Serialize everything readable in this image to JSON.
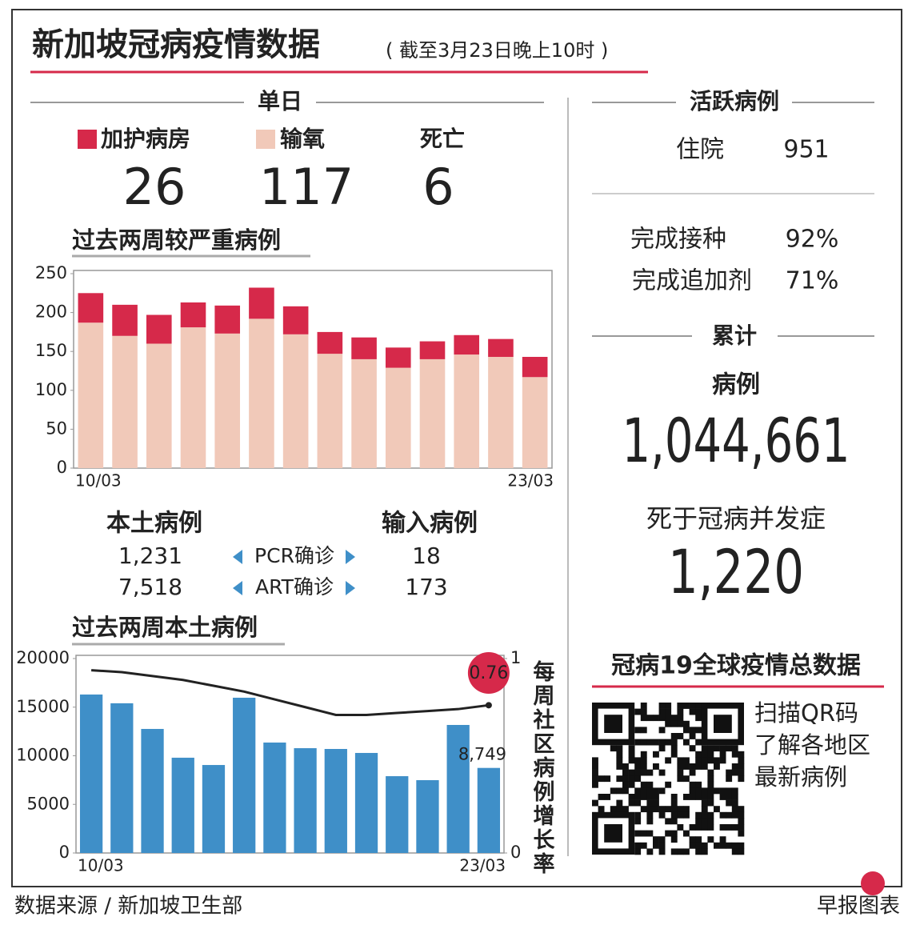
{
  "header": {
    "title": "新加坡冠病疫情数据",
    "subtitle": "( 截至3月23日晚上10时 )"
  },
  "daily": {
    "title": "单日",
    "values": [
      26,
      117,
      6
    ],
    "death_label": "死亡"
  },
  "active": {
    "title": "活跃病例",
    "rows": [
      [
        "住院",
        "951"
      ],
      [
        "完成接种",
        "92%"
      ],
      [
        "完成追加剂",
        "71%"
      ]
    ]
  },
  "cumulative": {
    "title": "累计",
    "cases_label": "病例",
    "cases": "1,044,661",
    "deaths_label": "死于冠病并发症",
    "deaths": "1,220"
  },
  "local_imported": {
    "headers": [
      "本土病例",
      "输入病例"
    ],
    "rows": [
      [
        "1,231",
        "PCR确诊",
        "18"
      ],
      [
        "7,518",
        "ART确诊",
        "173"
      ]
    ]
  },
  "qr": {
    "title": "冠病19全球疫情总数据",
    "lines": [
      "扫描QR码",
      "了解各地区",
      "最新病例"
    ]
  },
  "footer": {
    "source": "数据来源 / 新加坡卫生部",
    "credit": "早报图表"
  },
  "chart_data": [
    {
      "type": "bar",
      "stacked": true,
      "title": "过去两周较严重病例",
      "categories": [
        "10/03",
        null,
        null,
        null,
        null,
        null,
        null,
        null,
        null,
        null,
        null,
        null,
        null,
        "23/03"
      ],
      "series": [
        {
          "name": "输氧",
          "color": "#f1c9b9",
          "values": [
            187,
            170,
            160,
            181,
            173,
            192,
            172,
            147,
            140,
            129,
            140,
            146,
            143,
            117
          ]
        },
        {
          "name": "加护病房",
          "color": "#d6294a",
          "values": [
            38,
            40,
            37,
            32,
            36,
            40,
            36,
            28,
            28,
            26,
            23,
            25,
            23,
            26
          ]
        }
      ],
      "ylim": [
        0,
        250
      ],
      "yticks": [
        0,
        50,
        100,
        150,
        200,
        250
      ],
      "grid": false
    },
    {
      "type": "bar",
      "title": "过去两周本土病例",
      "y2label": "每周社区病例增长率",
      "categories": [
        "10/03",
        null,
        null,
        null,
        null,
        null,
        null,
        null,
        null,
        null,
        null,
        null,
        null,
        "23/03"
      ],
      "series": [
        {
          "name": "本土病例",
          "color": "#3f8fc8",
          "values": [
            16300,
            15400,
            12760,
            9800,
            9050,
            15970,
            11360,
            10780,
            10700,
            10290,
            7900,
            7490,
            13170,
            8749
          ],
          "value_labels": [
            null,
            null,
            null,
            null,
            null,
            null,
            null,
            null,
            null,
            null,
            null,
            null,
            null,
            "8,749"
          ]
        },
        {
          "name": "每周社区病例增长率",
          "type": "line",
          "axis": "y2",
          "color": "#222222",
          "values": [
            0.94,
            0.93,
            0.91,
            0.89,
            0.86,
            0.83,
            0.79,
            0.75,
            0.71,
            0.71,
            0.72,
            0.73,
            0.74,
            0.76
          ],
          "value_labels": [
            null,
            null,
            null,
            null,
            null,
            null,
            null,
            null,
            null,
            null,
            null,
            null,
            null,
            "0.76"
          ]
        }
      ],
      "ylim": [
        0,
        20000
      ],
      "yticks": [
        0,
        5000,
        10000,
        15000,
        20000
      ],
      "y2lim": [
        0,
        1
      ],
      "y2ticks": [
        0,
        1
      ],
      "grid": false
    }
  ]
}
